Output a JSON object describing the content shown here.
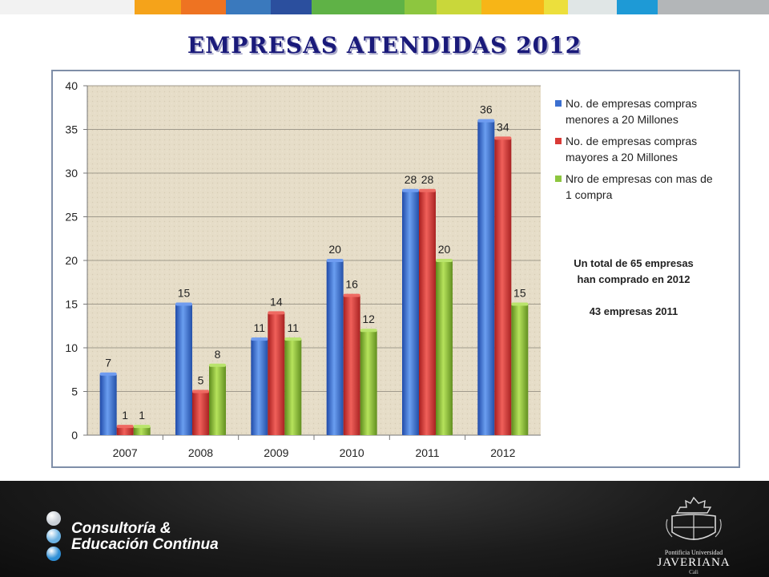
{
  "header": {
    "title": "EMPRESAS ATENDIDAS 2012",
    "stripe_colors": [
      "#f2f2f2",
      "#f5a31a",
      "#ee7322",
      "#3a79bd",
      "#2b4f9e",
      "#5fb246",
      "#8dc63f",
      "#c9d73a",
      "#f7b517",
      "#ecdf3c",
      "#e0e6e6",
      "#1e9ad6",
      "#b3b6b8"
    ]
  },
  "chart_data": {
    "type": "bar",
    "categories": [
      "2007",
      "2008",
      "2009",
      "2010",
      "2011",
      "2012"
    ],
    "series": [
      {
        "name": "No. de empresas compras menores a 20 Millones",
        "values": [
          7,
          15,
          11,
          20,
          28,
          36
        ],
        "color": "#3b6fd0"
      },
      {
        "name": "No. de empresas compras mayores a 20 Millones",
        "values": [
          1,
          5,
          14,
          16,
          28,
          34
        ],
        "color": "#d93a36"
      },
      {
        "name": "Nro de empresas con mas de 1 compra",
        "values": [
          1,
          8,
          11,
          12,
          20,
          15
        ],
        "color": "#8dc63f"
      }
    ],
    "yticks": [
      "0",
      "5",
      "10",
      "15",
      "20",
      "25",
      "30",
      "35",
      "40"
    ],
    "ylim": [
      0,
      40
    ],
    "grid": true,
    "legend_position": "right",
    "plot_background": "#e6ddc8"
  },
  "legend": {
    "items": [
      {
        "line1": "No. de empresas compras",
        "line2": "menores a 20 Millones"
      },
      {
        "line1": "No. de empresas compras",
        "line2": "mayores a 20 Millones"
      },
      {
        "line1": "Nro de empresas con mas de",
        "line2": "1 compra"
      }
    ]
  },
  "note": {
    "line1": "Un total de 65 empresas",
    "line2": "han comprado en 2012",
    "line3": "43 empresas 2011"
  },
  "footer": {
    "brand_line1": "Consultoría &",
    "brand_line2": "Educación Continua",
    "dot_colors": [
      "#c9cfd6",
      "#6cb2e2",
      "#2f8fd6"
    ],
    "logo_line1": "Pontificia Universidad",
    "logo_line2": "JAVERIANA",
    "logo_line3": "Cali"
  }
}
